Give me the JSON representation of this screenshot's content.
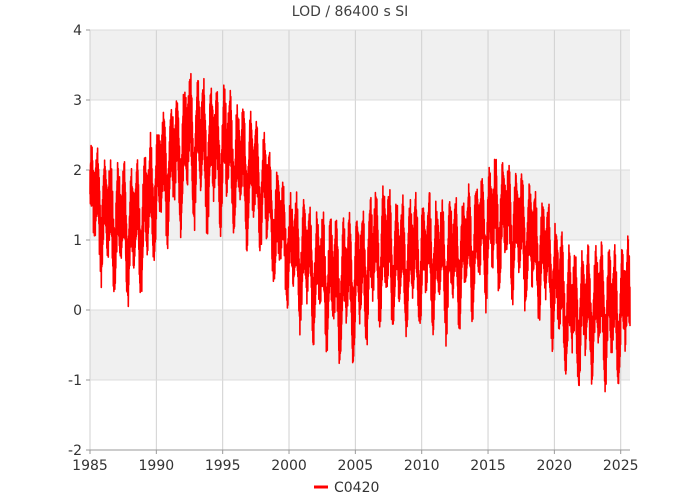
{
  "chart_data": {
    "type": "line",
    "title": "LOD / 86400 s SI",
    "xlabel": "",
    "ylabel": "",
    "xlim": [
      1985,
      2025.7
    ],
    "ylim": [
      -2,
      4
    ],
    "x_ticks": [
      1985,
      1990,
      1995,
      2000,
      2005,
      2010,
      2015,
      2020,
      2025
    ],
    "y_ticks": [
      -2,
      -1,
      0,
      1,
      2,
      3,
      4
    ],
    "grid": true,
    "alternating_bands": true,
    "legend": {
      "position": "bottom-center"
    },
    "series": [
      {
        "name": "C0420",
        "color": "#ff0000",
        "x": [
          1985.0,
          1985.5,
          1986.0,
          1986.5,
          1987.0,
          1987.5,
          1988.0,
          1988.5,
          1989.0,
          1989.5,
          1990.0,
          1990.5,
          1991.0,
          1991.5,
          1992.0,
          1992.5,
          1993.0,
          1993.5,
          1994.0,
          1994.5,
          1995.0,
          1995.5,
          1996.0,
          1996.5,
          1997.0,
          1997.5,
          1998.0,
          1998.5,
          1999.0,
          1999.5,
          2000.0,
          2000.5,
          2001.0,
          2001.5,
          2002.0,
          2002.5,
          2003.0,
          2003.5,
          2004.0,
          2004.5,
          2005.0,
          2005.5,
          2006.0,
          2006.5,
          2007.0,
          2007.5,
          2008.0,
          2008.5,
          2009.0,
          2009.5,
          2010.0,
          2010.5,
          2011.0,
          2011.5,
          2012.0,
          2012.5,
          2013.0,
          2013.5,
          2014.0,
          2014.5,
          2015.0,
          2015.5,
          2016.0,
          2016.5,
          2017.0,
          2017.5,
          2018.0,
          2018.5,
          2019.0,
          2019.5,
          2020.0,
          2020.5,
          2021.0,
          2021.5,
          2022.0,
          2022.5,
          2023.0,
          2023.5,
          2024.0,
          2024.5,
          2025.0,
          2025.5
        ],
        "trend": [
          1.6,
          1.55,
          1.4,
          1.25,
          1.25,
          1.2,
          1.15,
          1.2,
          1.3,
          1.5,
          1.8,
          1.9,
          2.1,
          2.2,
          2.3,
          2.4,
          2.4,
          2.3,
          2.3,
          2.2,
          2.3,
          2.25,
          2.1,
          2.0,
          2.0,
          1.9,
          1.8,
          1.5,
          1.2,
          1.1,
          0.9,
          0.8,
          0.75,
          0.7,
          0.55,
          0.5,
          0.45,
          0.35,
          0.35,
          0.4,
          0.4,
          0.5,
          0.65,
          0.8,
          0.85,
          0.8,
          0.75,
          0.7,
          0.7,
          0.75,
          0.75,
          0.8,
          0.75,
          0.7,
          0.7,
          0.75,
          0.8,
          0.85,
          0.95,
          1.05,
          1.15,
          1.25,
          1.3,
          1.3,
          1.2,
          1.1,
          1.0,
          0.9,
          0.8,
          0.65,
          0.5,
          0.2,
          0.05,
          -0.05,
          -0.05,
          0.0,
          0.05,
          0.05,
          0.0,
          -0.05,
          0.0,
          0.1
        ],
        "amplitude": [
          0.75,
          0.75,
          0.75,
          0.8,
          0.8,
          0.8,
          0.8,
          0.8,
          0.8,
          0.8,
          0.8,
          0.8,
          0.8,
          0.85,
          0.85,
          0.9,
          0.9,
          0.9,
          0.9,
          0.85,
          0.85,
          0.8,
          0.8,
          0.8,
          0.8,
          0.8,
          0.75,
          0.75,
          0.7,
          0.7,
          0.7,
          0.75,
          0.75,
          0.75,
          0.75,
          0.8,
          0.8,
          0.85,
          0.85,
          0.85,
          0.85,
          0.85,
          0.85,
          0.85,
          0.85,
          0.85,
          0.8,
          0.8,
          0.8,
          0.8,
          0.8,
          0.8,
          0.8,
          0.8,
          0.8,
          0.8,
          0.8,
          0.8,
          0.8,
          0.8,
          0.8,
          0.8,
          0.8,
          0.8,
          0.8,
          0.8,
          0.75,
          0.75,
          0.75,
          0.75,
          0.8,
          0.8,
          0.8,
          0.8,
          0.8,
          0.8,
          0.8,
          0.8,
          0.8,
          0.8,
          0.8,
          0.8
        ]
      }
    ]
  }
}
